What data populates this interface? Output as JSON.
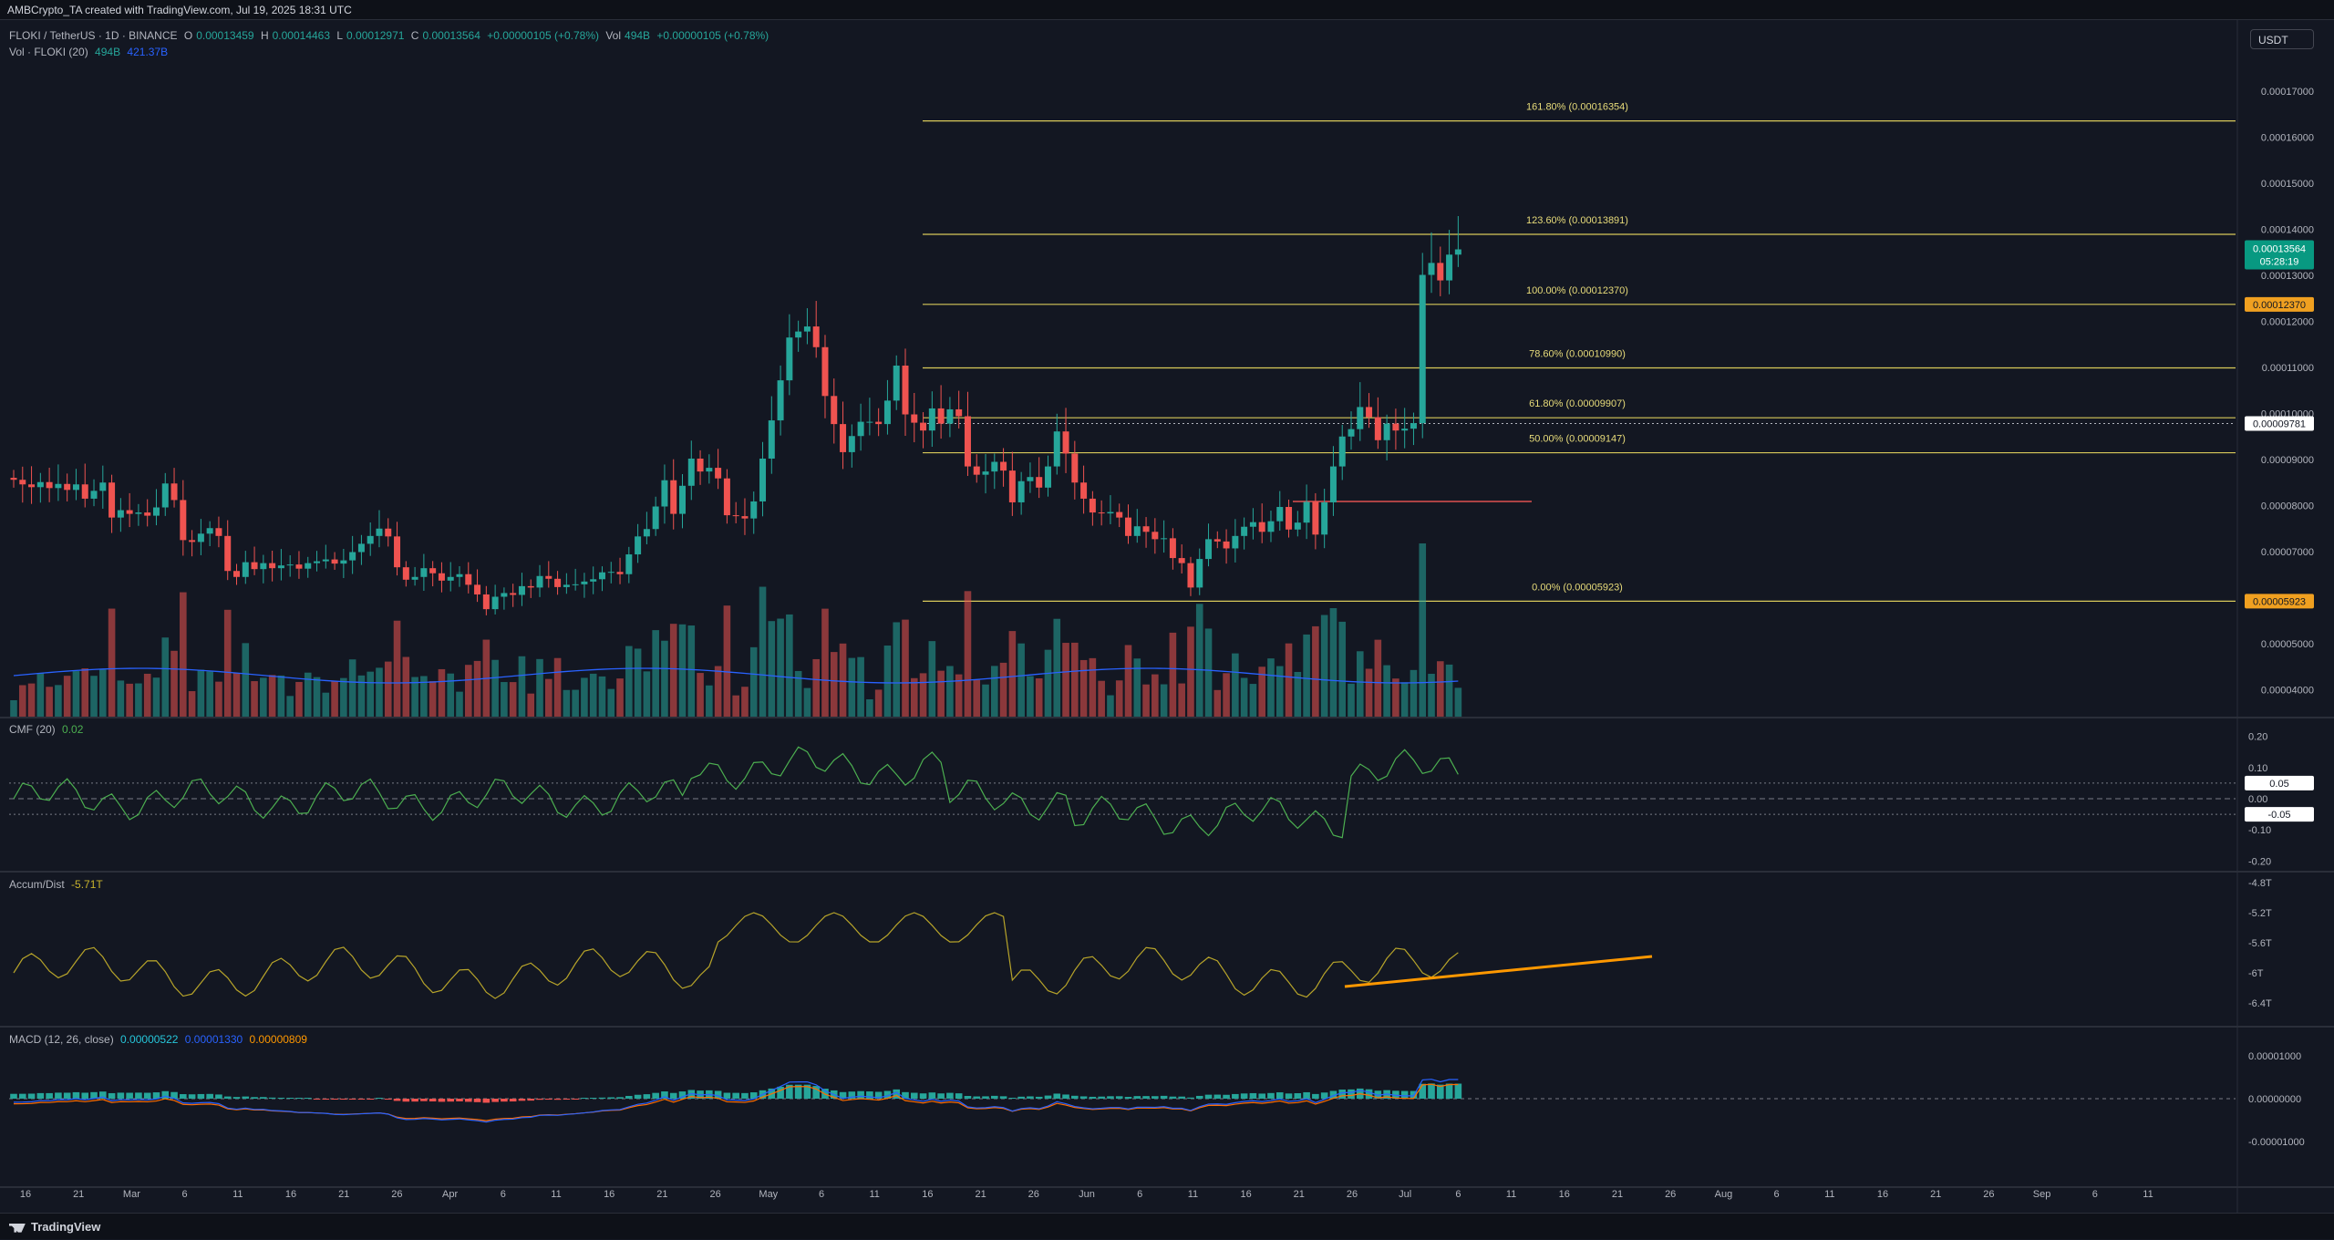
{
  "header": {
    "attribution": "AMBCrypto_TA created with TradingView.com, Jul 19, 2025 18:31 UTC"
  },
  "legend": {
    "symbol": "FLOKI / TetherUS · 1D · BINANCE",
    "open_label": "O",
    "open": "0.00013459",
    "high_label": "H",
    "high": "0.00014463",
    "low_label": "L",
    "low": "0.00012971",
    "close_label": "C",
    "close": "0.00013564",
    "change": "+0.00000105 (+0.78%)",
    "vol_label": "Vol",
    "vol": "494B",
    "vol_change": "+0.00000105 (+0.78%)",
    "vol_indicator": "Vol · FLOKI (20)",
    "vol_value": "494B",
    "vol_ma": "421.37B"
  },
  "quote_currency": "USDT",
  "colors": {
    "background": "#131722",
    "up": "#26a69a",
    "down": "#ef5350",
    "fib": "#d8c95a",
    "cmf": "#4caf50",
    "ad": "#b7a42a",
    "trendline": "#ff9800",
    "macd": "#2962ff",
    "signal": "#ff6d00"
  },
  "price_axis": {
    "ticks": [
      "0.00017000",
      "0.00016000",
      "0.00015000",
      "0.00014000",
      "0.00013000",
      "0.00012000",
      "0.00011000",
      "0.00010000",
      "0.00009000",
      "0.00008000",
      "0.00007000",
      "0.00006000",
      "0.00005000",
      "0.00004000"
    ],
    "current_price": "0.00013564",
    "countdown": "05:28:19",
    "label_high": "0.00012370",
    "label_mid": "0.00009781",
    "label_low": "0.00005923"
  },
  "fib_levels": [
    {
      "label": "161.80% (0.00016354)",
      "price": 0.00016354
    },
    {
      "label": "123.60% (0.00013891)",
      "price": 0.00013891
    },
    {
      "label": "100.00% (0.00012370)",
      "price": 0.0001237
    },
    {
      "label": "78.60% (0.00010990)",
      "price": 0.0001099
    },
    {
      "label": "61.80% (0.00009907)",
      "price": 9.907e-05
    },
    {
      "label": "50.00% (0.00009147)",
      "price": 9.147e-05
    },
    {
      "label": "0.00% (0.00005923)",
      "price": 5.923e-05
    }
  ],
  "time_axis": [
    "16",
    "21",
    "Mar",
    "6",
    "11",
    "16",
    "21",
    "26",
    "Apr",
    "6",
    "11",
    "16",
    "21",
    "26",
    "May",
    "6",
    "11",
    "16",
    "21",
    "26",
    "Jun",
    "6",
    "11",
    "16",
    "21",
    "26",
    "Jul",
    "6",
    "11",
    "16",
    "21",
    "26",
    "Aug",
    "6",
    "11",
    "16",
    "21",
    "26",
    "Sep",
    "6",
    "11"
  ],
  "cmf": {
    "title": "CMF (20)",
    "value": "0.02",
    "ticks": [
      "0.20",
      "0.10",
      "0.00",
      "-0.10",
      "-0.20"
    ],
    "label_upper": "0.05",
    "label_lower": "-0.05"
  },
  "ad": {
    "title": "Accum/Dist",
    "value": "-5.71T",
    "ticks": [
      "-4.8T",
      "-5.2T",
      "-5.6T",
      "-6T",
      "-6.4T"
    ]
  },
  "macd": {
    "title": "MACD (12, 26, close)",
    "hist": "0.00000522",
    "macd": "0.00001330",
    "signal": "0.00000809",
    "ticks": [
      "0.00001000",
      "0.00000000",
      "-0.00001000"
    ]
  },
  "footer": {
    "brand": "TradingView"
  },
  "chart_data": {
    "type": "candlestick",
    "symbol": "FLOKI / TetherUS",
    "interval": "1D",
    "y_range": [
      3.5e-05,
      0.000175
    ],
    "closes": [
      8.56e-05,
      8.46e-05,
      8.4e-05,
      8.51e-05,
      8.38e-05,
      8.47e-05,
      8.34e-05,
      8.46e-05,
      8.15e-05,
      8.32e-05,
      8.5e-05,
      7.74e-05,
      7.9e-05,
      7.82e-05,
      7.85e-05,
      7.78e-05,
      7.96e-05,
      8.48e-05,
      8.12e-05,
      7.25e-05,
      7.21e-05,
      7.39e-05,
      7.51e-05,
      7.34e-05,
      6.58e-05,
      6.45e-05,
      6.77e-05,
      6.62e-05,
      6.75e-05,
      6.64e-05,
      6.7e-05,
      6.72e-05,
      6.63e-05,
      6.75e-05,
      6.79e-05,
      6.83e-05,
      6.74e-05,
      6.81e-05,
      6.99e-05,
      7.17e-05,
      7.34e-05,
      7.5e-05,
      7.33e-05,
      6.66e-05,
      6.39e-05,
      6.45e-05,
      6.64e-05,
      6.53e-05,
      6.37e-05,
      6.45e-05,
      6.51e-05,
      6.28e-05,
      6.07e-05,
      5.75e-05,
      6.02e-05,
      6.1e-05,
      6.06e-05,
      6.25e-05,
      6.22e-05,
      6.47e-05,
      6.41e-05,
      6.23e-05,
      6.28e-05,
      6.29e-05,
      6.35e-05,
      6.4e-05,
      6.55e-05,
      6.56e-05,
      6.51e-05,
      6.94e-05,
      7.33e-05,
      7.49e-05,
      7.98e-05,
      8.55e-05,
      7.82e-05,
      8.43e-05,
      9.02e-05,
      8.74e-05,
      8.82e-05,
      8.59e-05,
      7.79e-05,
      7.77e-05,
      7.72e-05,
      8.09e-05,
      9.02e-05,
      9.85e-05,
      0.0001072,
      0.0001165,
      0.0001178,
      0.0001189,
      0.0001144,
      0.0001038,
      9.77e-05,
      9.16e-05,
      9.51e-05,
      9.82e-05,
      9.82e-05,
      9.77e-05,
      0.0001028,
      0.0001104,
      9.98e-05,
      9.8e-05,
      9.63e-05,
      0.0001011,
      9.78e-05,
      0.0001009,
      9.94e-05,
      8.85e-05,
      8.67e-05,
      8.74e-05,
      8.95e-05,
      8.76e-05,
      8.07e-05,
      8.53e-05,
      8.62e-05,
      8.39e-05,
      8.85e-05,
      9.61e-05,
      9.13e-05,
      8.5e-05,
      8.15e-05,
      7.85e-05,
      7.83e-05,
      7.86e-05,
      7.74e-05,
      7.34e-05,
      7.55e-05,
      7.43e-05,
      7.27e-05,
      7.29e-05,
      6.86e-05,
      6.75e-05,
      6.22e-05,
      6.84e-05,
      7.27e-05,
      7.22e-05,
      7.07e-05,
      7.34e-05,
      7.54e-05,
      7.64e-05,
      7.43e-05,
      7.66e-05,
      7.97e-05,
      7.48e-05,
      7.63e-05,
      8.08e-05,
      7.37e-05,
      8.07e-05,
      8.85e-05,
      9.5e-05,
      9.66e-05,
      0.0001014,
      9.92e-05,
      9.42e-05,
      9.78e-05,
      9.63e-05,
      9.67e-05,
      9.79e-05,
      0.0001301,
      0.0001327,
      0.0001289,
      0.0001345,
      0.00013564
    ],
    "volume_axis": "relative",
    "annotations": [
      "horizontal resistance near 0.0000809 (Jun 12 – Jul 8)",
      "A/D rising trendline from ~Jun 21 to Jul 19"
    ]
  }
}
